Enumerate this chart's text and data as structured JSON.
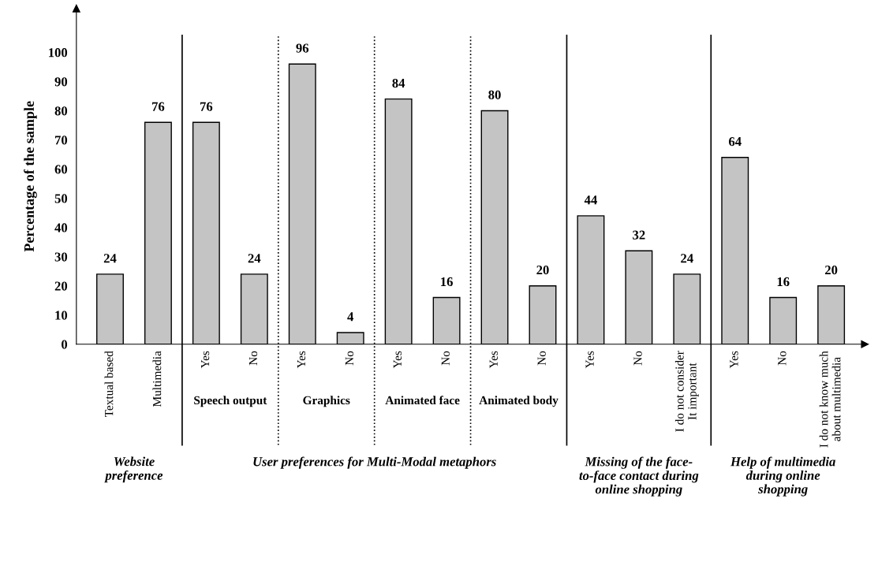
{
  "chart_data": {
    "type": "bar",
    "ylabel": "Percentage of the sample",
    "categories": [
      "Textual based",
      "Multimedia",
      "Yes",
      "No",
      "Yes",
      "No",
      "Yes",
      "No",
      "Yes",
      "No",
      "Yes",
      "No",
      "I do not consider\nIt important",
      "Yes",
      "No",
      "I do not know much\nabout multimedia"
    ],
    "values": [
      24,
      76,
      76,
      24,
      96,
      4,
      84,
      16,
      80,
      20,
      44,
      32,
      24,
      64,
      16,
      20
    ],
    "color": "#c4c4c4",
    "data_labels": true,
    "grid": false,
    "ylim": [
      0,
      115
    ],
    "yticks": [
      0,
      10,
      20,
      30,
      40,
      50,
      60,
      70,
      80,
      90,
      100
    ],
    "annotations": [
      "Speech output",
      "Graphics",
      "Animated face",
      "Animated body",
      "Website\npreference",
      "User preferences for Multi-Modal metaphors",
      "Missing of the face-\nto-face contact during\nonline shopping",
      "Help of multimedia\nduring online\nshopping"
    ]
  }
}
